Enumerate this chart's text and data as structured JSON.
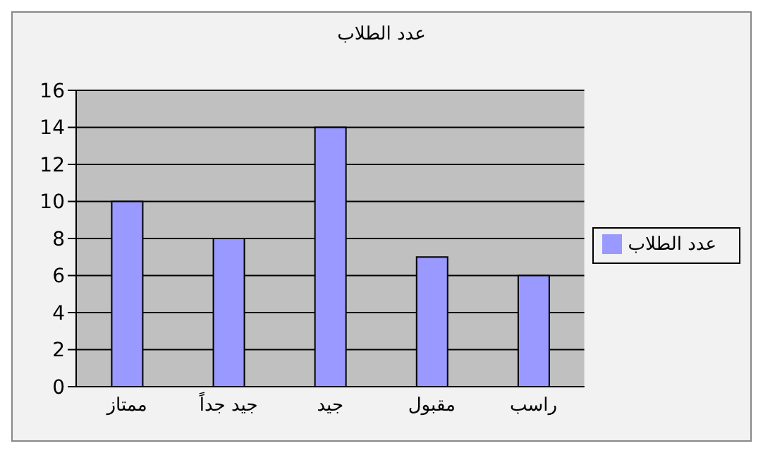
{
  "chart_data": {
    "type": "bar",
    "title": "عدد الطلاب",
    "categories": [
      "ممتاز",
      "جيد جداً",
      "جيد",
      "مقبول",
      "راسب"
    ],
    "series": [
      {
        "name": "عدد الطلاب",
        "color": "#9999ff",
        "values": [
          10,
          8,
          14,
          7,
          6
        ]
      }
    ],
    "ylim": [
      0,
      16
    ],
    "yticks": [
      0,
      2,
      4,
      6,
      8,
      10,
      12,
      14,
      16
    ],
    "grid": "y",
    "legend": "right"
  }
}
